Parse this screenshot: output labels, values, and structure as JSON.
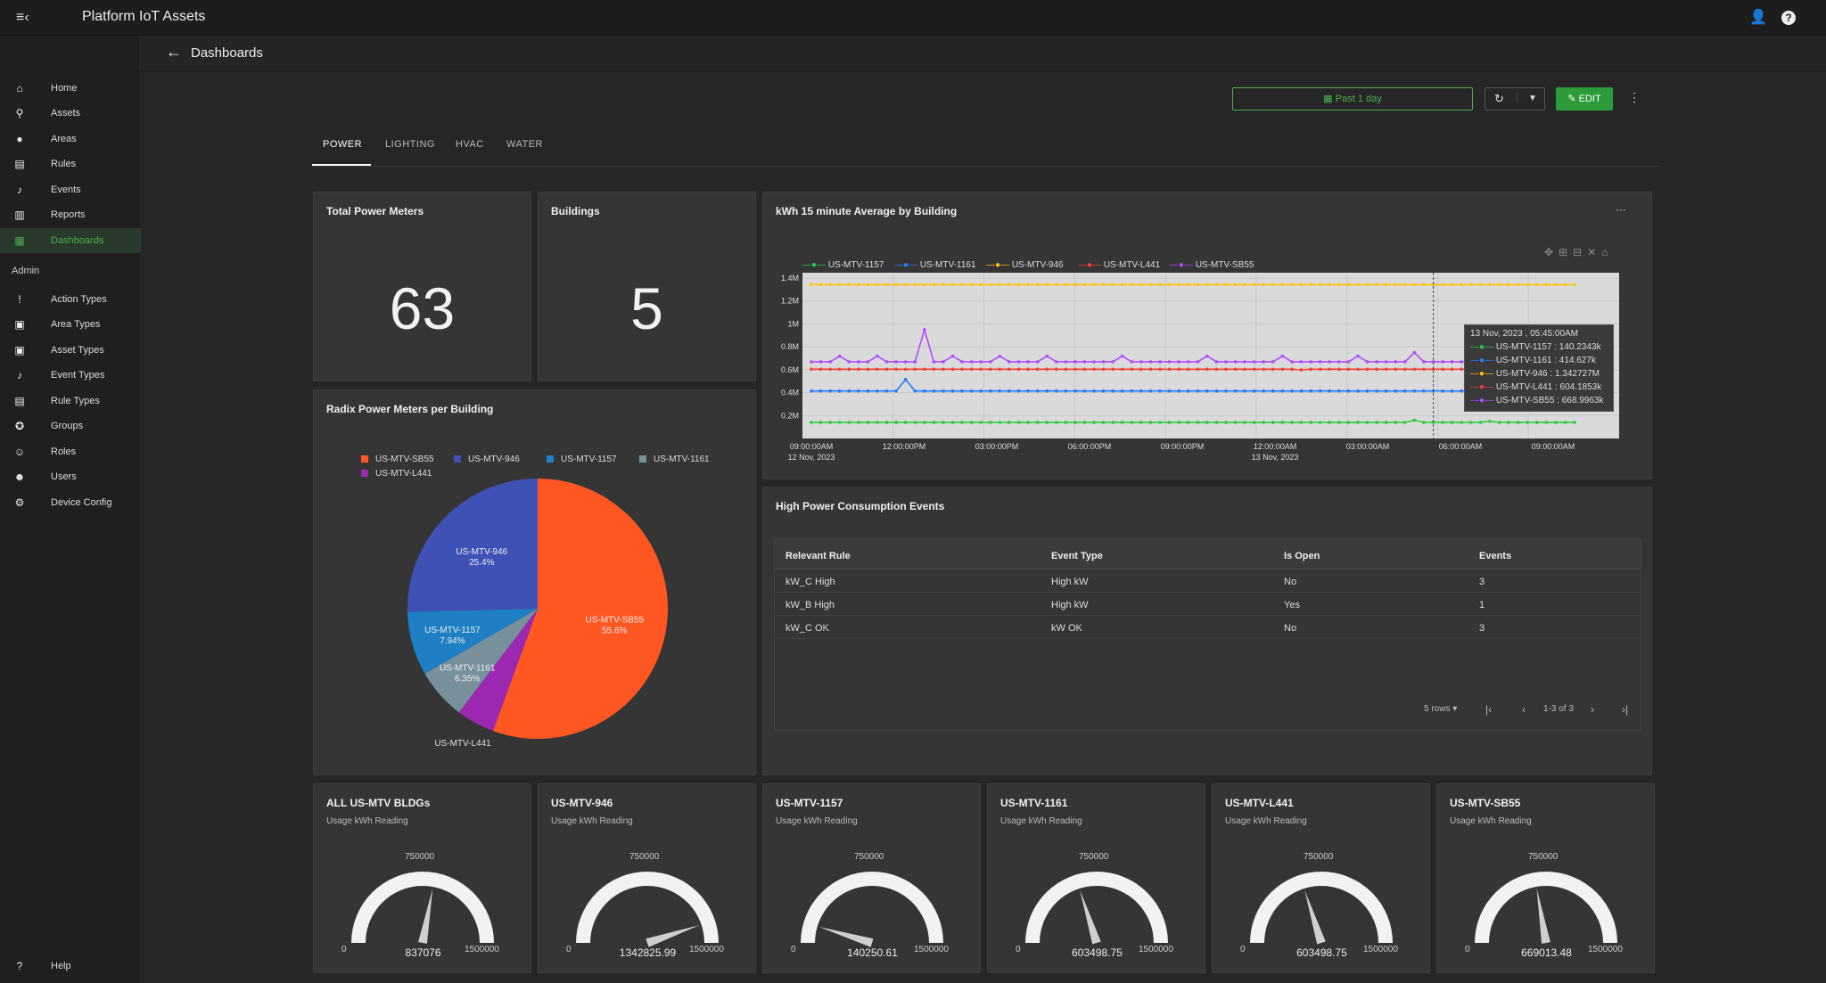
{
  "app": {
    "title": "Platform IoT Assets"
  },
  "sidebar": {
    "items": [
      {
        "label": "Home"
      },
      {
        "label": "Assets"
      },
      {
        "label": "Areas"
      },
      {
        "label": "Rules"
      },
      {
        "label": "Events"
      },
      {
        "label": "Reports"
      },
      {
        "label": "Dashboards"
      }
    ],
    "admin_label": "Admin",
    "admin_items": [
      {
        "label": "Action Types"
      },
      {
        "label": "Area Types"
      },
      {
        "label": "Asset Types"
      },
      {
        "label": "Event Types"
      },
      {
        "label": "Rule Types"
      },
      {
        "label": "Groups"
      },
      {
        "label": "Roles"
      },
      {
        "label": "Users"
      },
      {
        "label": "Device Config"
      }
    ],
    "help_label": "Help"
  },
  "header": {
    "breadcrumb": "Dashboards",
    "date_range": "Past 1 day",
    "edit_label": "EDIT"
  },
  "tabs": [
    {
      "label": "POWER"
    },
    {
      "label": "LIGHTING"
    },
    {
      "label": "HVAC"
    },
    {
      "label": "WATER"
    }
  ],
  "cards": {
    "total_power_meters": {
      "title": "Total Power Meters",
      "value": "63"
    },
    "buildings": {
      "title": "Buildings",
      "value": "5"
    },
    "pie_title": "Radix Power Meters per Building",
    "line_title": "kWh 15 minute Average by Building",
    "events_title": "High Power Consumption Events"
  },
  "pie_legend": [
    "US-MTV-SB55",
    "US-MTV-946",
    "US-MTV-1157",
    "US-MTV-1161",
    "US-MTV-L441"
  ],
  "pie_labels": [
    {
      "name": "US-MTV-SB55",
      "pct": "55.6%"
    },
    {
      "name": "US-MTV-946",
      "pct": "25.4%"
    },
    {
      "name": "US-MTV-1157",
      "pct": "7.94%"
    },
    {
      "name": "US-MTV-1161",
      "pct": "6.35%"
    },
    {
      "name": "US-MTV-L441",
      "pct": "4.76%"
    }
  ],
  "line_legend": [
    "US-MTV-1157",
    "US-MTV-1161",
    "US-MTV-946",
    "US-MTV-L441",
    "US-MTV-SB55"
  ],
  "tooltip": {
    "title": "13 Nov, 2023 , 05:45:00AM",
    "rows": [
      "US-MTV-1157 : 140.2343k",
      "US-MTV-1161 : 414.627k",
      "US-MTV-946 : 1.342727M",
      "US-MTV-L441 : 604.1853k",
      "US-MTV-SB55 : 668.9963k"
    ]
  },
  "line_axis": {
    "y_ticks": [
      "1.4M",
      "1.2M",
      "1M",
      "0.8M",
      "0.6M",
      "0.4M",
      "0.2M"
    ],
    "x_ticks": [
      "09:00:00AM",
      "12:00:00PM",
      "03:00:00PM",
      "06:00:00PM",
      "09:00:00PM",
      "12:00:00AM",
      "03:00:00AM",
      "06:00:00AM",
      "09:00:00AM"
    ],
    "x_dates": [
      "12 Nov, 2023",
      "13 Nov, 2023"
    ]
  },
  "table": {
    "headers": [
      "Relevant Rule",
      "Event Type",
      "Is Open",
      "Events"
    ],
    "rows": [
      [
        "kW_C High",
        "High kW",
        "No",
        "3"
      ],
      [
        "kW_B High",
        "High kW",
        "Yes",
        "1"
      ],
      [
        "kW_C OK",
        "kW OK",
        "No",
        "3"
      ]
    ],
    "rows_per_page": "5 rows",
    "range": "1-3 of 3"
  },
  "gauges": [
    {
      "title": "ALL US-MTV BLDGs",
      "subtitle": "Usage kWh Reading",
      "value": "837076",
      "num": 837076
    },
    {
      "title": "US-MTV-946",
      "subtitle": "Usage kWh Reading",
      "value": "1342825.99",
      "num": 1342825.99
    },
    {
      "title": "US-MTV-1157",
      "subtitle": "Usage kWh Reading",
      "value": "140250.61",
      "num": 140250.61
    },
    {
      "title": "US-MTV-1161",
      "subtitle": "Usage kWh Reading",
      "value": "603498.75",
      "num": 603498.75
    },
    {
      "title": "US-MTV-L441",
      "subtitle": "Usage kWh Reading",
      "value": "603498.75",
      "num": 603498.75
    },
    {
      "title": "US-MTV-SB55",
      "subtitle": "Usage kWh Reading",
      "value": "669013.48",
      "num": 669013.48
    }
  ],
  "gauge_scale": {
    "min": "0",
    "mid": "750000",
    "max": "1500000"
  },
  "colors": {
    "accent": "#4caf50",
    "sb55": "#ff5722",
    "b946": "#3f51b5",
    "b1157": "#1e7fc4",
    "b1161": "#78909c",
    "l441": "#9c27b0",
    "yellow": "#ffc107",
    "green": "#2ecc40",
    "blue": "#2979ff",
    "red": "#f44336",
    "purple": "#b04dff"
  },
  "chart_data": [
    {
      "type": "pie",
      "title": "Radix Power Meters per Building",
      "categories": [
        "US-MTV-SB55",
        "US-MTV-946",
        "US-MTV-1157",
        "US-MTV-1161",
        "US-MTV-L441"
      ],
      "values": [
        55.6,
        25.4,
        7.94,
        6.35,
        4.76
      ]
    },
    {
      "type": "line",
      "title": "kWh 15 minute Average by Building",
      "legend": "top-left",
      "grid": true,
      "ylim": [
        0,
        1400000
      ],
      "series": [
        {
          "name": "US-MTV-946",
          "values": [
            1342727,
            1342727,
            1342727,
            1342727,
            1342727
          ]
        },
        {
          "name": "US-MTV-SB55",
          "values": [
            668996,
            690000,
            860000,
            668996,
            668996
          ]
        },
        {
          "name": "US-MTV-L441",
          "values": [
            604185,
            604185,
            604185,
            604185,
            604185
          ]
        },
        {
          "name": "US-MTV-1161",
          "values": [
            414627,
            414627,
            530000,
            414627,
            414627
          ]
        },
        {
          "name": "US-MTV-1157",
          "values": [
            140234,
            140234,
            140234,
            140234,
            160000
          ]
        }
      ]
    }
  ]
}
